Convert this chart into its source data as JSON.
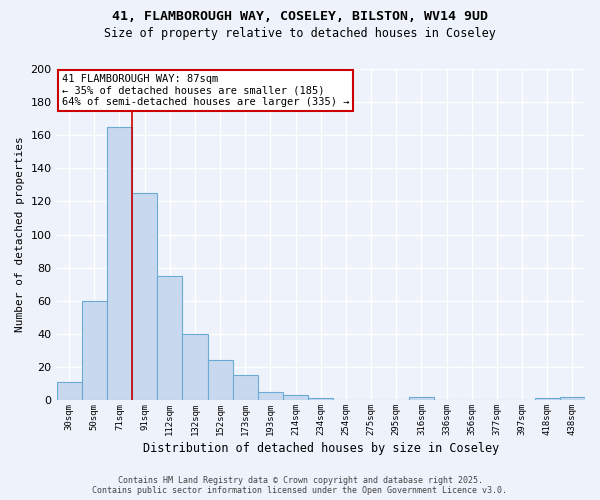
{
  "title1": "41, FLAMBOROUGH WAY, COSELEY, BILSTON, WV14 9UD",
  "title2": "Size of property relative to detached houses in Coseley",
  "xlabel": "Distribution of detached houses by size in Coseley",
  "ylabel": "Number of detached properties",
  "categories": [
    "30sqm",
    "50sqm",
    "71sqm",
    "91sqm",
    "112sqm",
    "132sqm",
    "152sqm",
    "173sqm",
    "193sqm",
    "214sqm",
    "234sqm",
    "254sqm",
    "275sqm",
    "295sqm",
    "316sqm",
    "336sqm",
    "356sqm",
    "377sqm",
    "397sqm",
    "418sqm",
    "438sqm"
  ],
  "values": [
    11,
    60,
    165,
    125,
    75,
    40,
    24,
    15,
    5,
    3,
    1,
    0,
    0,
    0,
    2,
    0,
    0,
    0,
    0,
    1,
    2
  ],
  "bar_color": "#c8d9ef",
  "bar_edge_color": "#6aaad4",
  "bg_color": "#eef3fb",
  "grid_color": "#ffffff",
  "annotation_text": "41 FLAMBOROUGH WAY: 87sqm\n← 35% of detached houses are smaller (185)\n64% of semi-detached houses are larger (335) →",
  "annotation_box_color": "#ffffff",
  "annotation_box_edge": "#cc0000",
  "ylim": [
    0,
    200
  ],
  "yticks": [
    0,
    20,
    40,
    60,
    80,
    100,
    120,
    140,
    160,
    180,
    200
  ],
  "footer1": "Contains HM Land Registry data © Crown copyright and database right 2025.",
  "footer2": "Contains public sector information licensed under the Open Government Licence v3.0."
}
